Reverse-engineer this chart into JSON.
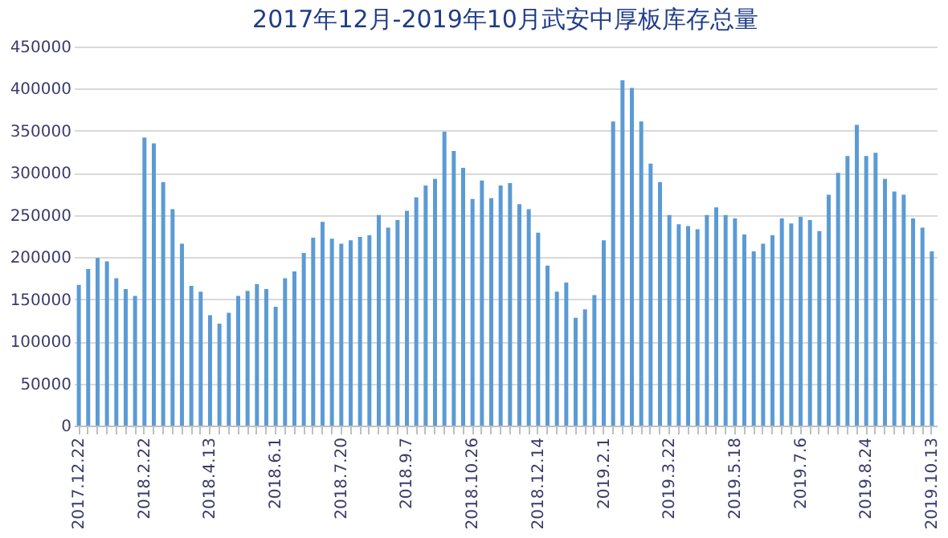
{
  "chart_data": {
    "type": "bar",
    "title": "2017年12月-2019年10月武安中厚板库存总量",
    "categories": [
      "2017.12.22",
      null,
      null,
      null,
      null,
      null,
      null,
      "2018.2.22",
      null,
      null,
      null,
      null,
      null,
      null,
      "2018.4.13",
      null,
      null,
      null,
      null,
      null,
      null,
      "2018.6.1",
      null,
      null,
      null,
      null,
      null,
      null,
      "2018.7.20",
      null,
      null,
      null,
      null,
      null,
      null,
      "2018.9.7",
      null,
      null,
      null,
      null,
      null,
      null,
      "2018.10.26",
      null,
      null,
      null,
      null,
      null,
      null,
      "2018.12.14",
      null,
      null,
      null,
      null,
      null,
      null,
      "2019.2.1",
      null,
      null,
      null,
      null,
      null,
      null,
      "2019.3.22",
      null,
      null,
      null,
      null,
      null,
      null,
      "2019.5.18",
      null,
      null,
      null,
      null,
      null,
      null,
      "2019.7.6",
      null,
      null,
      null,
      null,
      null,
      null,
      "2019.8.24",
      null,
      null,
      null,
      null,
      null,
      null,
      "2019.10.13"
    ],
    "values": [
      167000,
      186000,
      199000,
      195000,
      175000,
      162000,
      154000,
      342000,
      335000,
      289000,
      257000,
      216000,
      166000,
      159000,
      131000,
      121000,
      134000,
      154000,
      160000,
      168000,
      162000,
      141000,
      175000,
      183000,
      205000,
      223000,
      242000,
      222000,
      216000,
      220000,
      224000,
      226000,
      250000,
      235000,
      244000,
      255000,
      271000,
      285000,
      293000,
      349000,
      326000,
      306000,
      269000,
      291000,
      270000,
      285000,
      288000,
      263000,
      257000,
      229000,
      190000,
      159000,
      170000,
      128000,
      138000,
      155000,
      220000,
      361000,
      410000,
      401000,
      361000,
      311000,
      289000,
      250000,
      239000,
      237000,
      233000,
      250000,
      259000,
      250000,
      246000,
      227000,
      207000,
      216000,
      226000,
      246000,
      240000,
      248000,
      244000,
      231000,
      274000,
      300000,
      320000,
      357000,
      320000,
      324000,
      293000,
      278000,
      274000,
      246000,
      235000,
      207000
    ],
    "color": "#5b9bd5",
    "ylim": [
      0,
      450000
    ],
    "yticks": [
      0,
      50000,
      100000,
      150000,
      200000,
      250000,
      300000,
      350000,
      400000,
      450000
    ],
    "grid": "y"
  }
}
